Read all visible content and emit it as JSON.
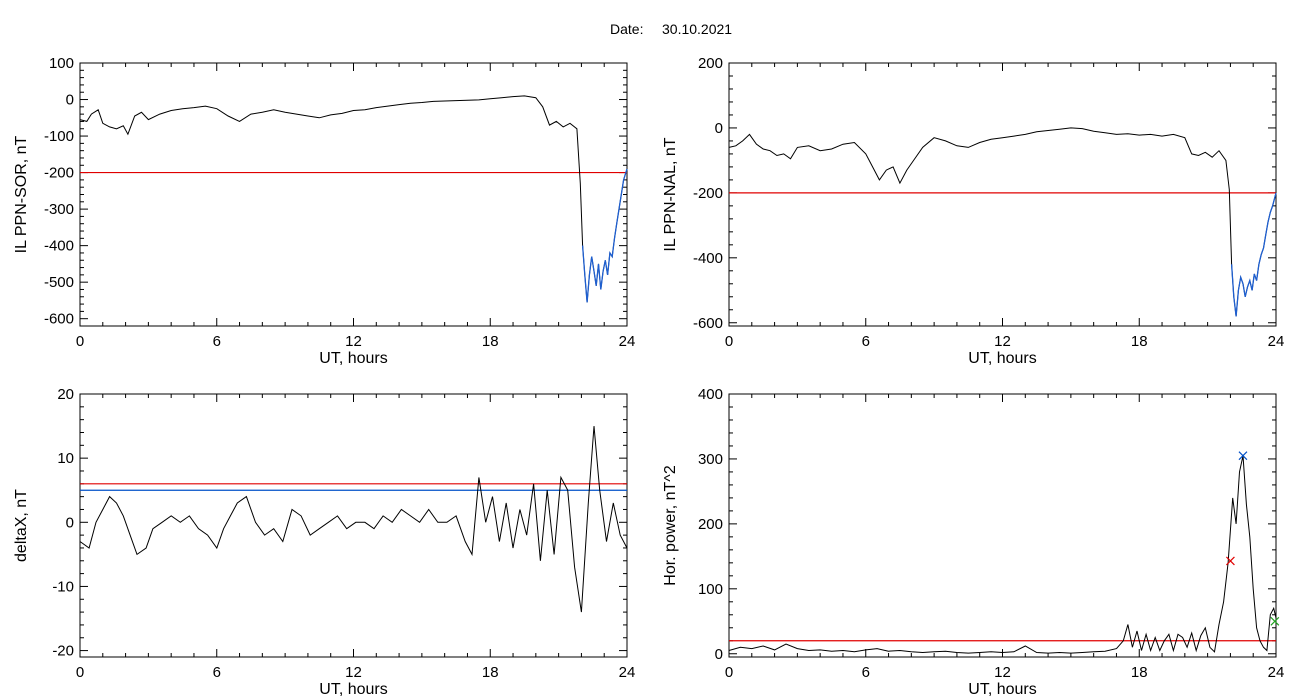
{
  "header": {
    "date_label": "Date:",
    "date_value": "30.10.2021"
  },
  "colors": {
    "series": "#000000",
    "threshold_red": "#e00000",
    "threshold_blue": "#0050c8",
    "highlight_blue": "#1e5fd0",
    "marker_red": "#e00000",
    "marker_blue": "#1e6ed0",
    "marker_green": "#20a020"
  },
  "chart_data": [
    {
      "type": "line",
      "id": "sor",
      "xlabel": "UT, hours",
      "ylabel": "IL PPN-SOR, nT",
      "xlim": [
        0,
        24
      ],
      "ylim": [
        -620,
        100
      ],
      "xticks": [
        0,
        6,
        12,
        18,
        24
      ],
      "xtick_labels": [
        "0",
        "6",
        "12",
        "18",
        "24"
      ],
      "yticks": [
        100,
        0,
        -100,
        -200,
        -300,
        -400,
        -500,
        -600
      ],
      "ytick_labels": [
        "100",
        "0",
        "-100",
        "-200",
        "-300",
        "-400",
        "-500",
        "-600"
      ],
      "threshold_lines": [
        {
          "y": -200,
          "color": "red"
        }
      ],
      "highlight": {
        "from_x": 22.0,
        "color": "blue"
      },
      "series": [
        {
          "x": [
            0,
            0.3,
            0.5,
            0.8,
            1.0,
            1.3,
            1.6,
            1.9,
            2.1,
            2.4,
            2.7,
            3.0,
            3.5,
            4.0,
            4.5,
            5.0,
            5.5,
            6.0,
            6.5,
            7.0,
            7.5,
            8.0,
            8.5,
            9.0,
            9.5,
            10.0,
            10.5,
            11.0,
            11.5,
            12.0,
            12.5,
            13.0,
            13.5,
            14.0,
            14.5,
            15.0,
            15.5,
            16.0,
            16.5,
            17.0,
            17.5,
            18.0,
            18.5,
            19.0,
            19.5,
            20.0,
            20.3,
            20.6,
            20.9,
            21.2,
            21.5,
            21.8,
            21.95,
            22.05,
            22.15,
            22.25,
            22.35,
            22.45,
            22.55,
            22.65,
            22.75,
            22.85,
            22.95,
            23.05,
            23.15,
            23.25,
            23.35,
            23.45,
            23.55,
            23.65,
            23.75,
            23.85,
            24.0
          ],
          "y": [
            -55,
            -60,
            -40,
            -28,
            -65,
            -75,
            -80,
            -72,
            -95,
            -45,
            -35,
            -55,
            -40,
            -30,
            -25,
            -22,
            -18,
            -25,
            -45,
            -60,
            -40,
            -35,
            -28,
            -35,
            -40,
            -45,
            -50,
            -42,
            -38,
            -30,
            -28,
            -22,
            -18,
            -14,
            -10,
            -8,
            -5,
            -4,
            -3,
            -2,
            -1,
            2,
            5,
            8,
            10,
            5,
            -20,
            -70,
            -60,
            -75,
            -65,
            -80,
            -230,
            -400,
            -480,
            -555,
            -480,
            -430,
            -470,
            -510,
            -450,
            -520,
            -470,
            -440,
            -480,
            -420,
            -430,
            -380,
            -340,
            -300,
            -260,
            -220,
            -190
          ]
        }
      ]
    },
    {
      "type": "line",
      "id": "nal",
      "xlabel": "UT, hours",
      "ylabel": "IL PPN-NAL, nT",
      "xlim": [
        0,
        24
      ],
      "ylim": [
        -610,
        200
      ],
      "xticks": [
        0,
        6,
        12,
        18,
        24
      ],
      "xtick_labels": [
        "0",
        "6",
        "12",
        "18",
        "24"
      ],
      "yticks": [
        200,
        0,
        -200,
        -400,
        -600
      ],
      "ytick_labels": [
        "200",
        "0",
        "-200",
        "-400",
        "-600"
      ],
      "threshold_lines": [
        {
          "y": -200,
          "color": "red"
        }
      ],
      "highlight": {
        "from_x": 22.0,
        "color": "blue"
      },
      "series": [
        {
          "x": [
            0,
            0.3,
            0.6,
            0.9,
            1.2,
            1.5,
            1.8,
            2.1,
            2.4,
            2.7,
            3.0,
            3.5,
            4.0,
            4.5,
            5.0,
            5.5,
            6.0,
            6.3,
            6.6,
            6.9,
            7.2,
            7.5,
            7.8,
            8.1,
            8.5,
            9.0,
            9.5,
            10.0,
            10.5,
            11.0,
            11.5,
            12.0,
            12.5,
            13.0,
            13.5,
            14.0,
            14.5,
            15.0,
            15.5,
            16.0,
            16.5,
            17.0,
            17.5,
            18.0,
            18.5,
            19.0,
            19.5,
            20.0,
            20.3,
            20.6,
            20.9,
            21.2,
            21.5,
            21.8,
            21.95,
            22.05,
            22.15,
            22.25,
            22.35,
            22.45,
            22.55,
            22.65,
            22.75,
            22.85,
            22.95,
            23.05,
            23.15,
            23.25,
            23.35,
            23.45,
            23.55,
            23.65,
            23.75,
            23.85,
            24.0
          ],
          "y": [
            -60,
            -55,
            -40,
            -20,
            -50,
            -65,
            -70,
            -85,
            -80,
            -95,
            -60,
            -55,
            -70,
            -65,
            -50,
            -45,
            -80,
            -120,
            -160,
            -130,
            -120,
            -170,
            -130,
            -100,
            -60,
            -30,
            -40,
            -55,
            -60,
            -45,
            -35,
            -30,
            -25,
            -20,
            -12,
            -8,
            -4,
            0,
            -2,
            -10,
            -15,
            -20,
            -18,
            -22,
            -20,
            -25,
            -20,
            -30,
            -80,
            -85,
            -75,
            -90,
            -70,
            -100,
            -190,
            -420,
            -520,
            -580,
            -500,
            -460,
            -480,
            -520,
            -490,
            -470,
            -500,
            -450,
            -470,
            -420,
            -390,
            -370,
            -330,
            -290,
            -260,
            -240,
            -200
          ]
        }
      ]
    },
    {
      "type": "line",
      "id": "deltax",
      "xlabel": "UT, hours",
      "ylabel": "deltaX, nT",
      "xlim": [
        0,
        24
      ],
      "ylim": [
        -21,
        20
      ],
      "xticks": [
        0,
        6,
        12,
        18,
        24
      ],
      "xtick_labels": [
        "0",
        "6",
        "12",
        "18",
        "24"
      ],
      "yticks": [
        20,
        10,
        0,
        -10,
        -20
      ],
      "ytick_labels": [
        "20",
        "10",
        "0",
        "-10",
        "-20"
      ],
      "threshold_lines": [
        {
          "y": 6,
          "color": "red"
        },
        {
          "y": 5,
          "color": "blue"
        }
      ],
      "series": [
        {
          "x": [
            0,
            0.4,
            0.7,
            1.0,
            1.3,
            1.6,
            1.9,
            2.2,
            2.5,
            2.9,
            3.2,
            3.6,
            4.0,
            4.4,
            4.8,
            5.2,
            5.6,
            6.0,
            6.3,
            6.6,
            6.9,
            7.3,
            7.7,
            8.1,
            8.5,
            8.9,
            9.3,
            9.7,
            10.1,
            10.5,
            10.9,
            11.3,
            11.7,
            12.1,
            12.5,
            12.9,
            13.3,
            13.7,
            14.1,
            14.5,
            14.9,
            15.3,
            15.7,
            16.1,
            16.5,
            16.9,
            17.2,
            17.5,
            17.8,
            18.1,
            18.4,
            18.7,
            19.0,
            19.3,
            19.6,
            19.9,
            20.2,
            20.5,
            20.8,
            21.1,
            21.4,
            21.7,
            22.0,
            22.3,
            22.55,
            22.8,
            23.1,
            23.4,
            23.7,
            24.0
          ],
          "y": [
            -3,
            -4,
            0,
            2,
            4,
            3,
            1,
            -2,
            -5,
            -4,
            -1,
            0,
            1,
            0,
            1,
            -1,
            -2,
            -4,
            -1,
            1,
            3,
            4,
            0,
            -2,
            -1,
            -3,
            2,
            1,
            -2,
            -1,
            0,
            1,
            -1,
            0,
            0,
            -1,
            1,
            0,
            2,
            1,
            0,
            2,
            0,
            0,
            1,
            -3,
            -5,
            7,
            0,
            4,
            -3,
            3,
            -4,
            2,
            -2,
            6,
            -6,
            5,
            -5,
            7,
            5,
            -7,
            -14,
            3,
            15,
            5,
            -3,
            3,
            -2,
            -4
          ]
        }
      ]
    },
    {
      "type": "line",
      "id": "power",
      "xlabel": "UT, hours",
      "ylabel": "Hor. power, nT^2",
      "xlim": [
        0,
        24
      ],
      "ylim": [
        -5,
        400
      ],
      "xticks": [
        0,
        6,
        12,
        18,
        24
      ],
      "xtick_labels": [
        "0",
        "6",
        "12",
        "18",
        "24"
      ],
      "yticks": [
        400,
        300,
        200,
        100,
        0
      ],
      "ytick_labels": [
        "400",
        "300",
        "200",
        "100",
        "0"
      ],
      "threshold_lines": [
        {
          "y": 20,
          "color": "red"
        }
      ],
      "markers": [
        {
          "x": 22.0,
          "y": 143,
          "color": "red",
          "symbol": "x"
        },
        {
          "x": 22.55,
          "y": 305,
          "color": "blue",
          "symbol": "x"
        },
        {
          "x": 23.95,
          "y": 50,
          "color": "green",
          "symbol": "x"
        }
      ],
      "series": [
        {
          "x": [
            0,
            0.5,
            1.0,
            1.5,
            2.0,
            2.5,
            3.0,
            3.5,
            4.0,
            4.5,
            5.0,
            5.5,
            6.0,
            6.5,
            7.0,
            7.5,
            8.0,
            8.5,
            9.0,
            9.5,
            10.0,
            10.5,
            11.0,
            11.5,
            12.0,
            12.5,
            13.0,
            13.5,
            14.0,
            14.5,
            15.0,
            15.5,
            16.0,
            16.5,
            17.0,
            17.3,
            17.5,
            17.7,
            17.9,
            18.1,
            18.3,
            18.5,
            18.7,
            18.9,
            19.1,
            19.3,
            19.5,
            19.7,
            19.9,
            20.1,
            20.3,
            20.5,
            20.7,
            20.9,
            21.1,
            21.3,
            21.5,
            21.7,
            21.9,
            22.1,
            22.25,
            22.4,
            22.55,
            22.7,
            22.85,
            23.0,
            23.15,
            23.3,
            23.45,
            23.6,
            23.75,
            23.9,
            24.0
          ],
          "y": [
            5,
            10,
            8,
            12,
            6,
            15,
            8,
            5,
            6,
            4,
            5,
            3,
            6,
            8,
            4,
            5,
            3,
            2,
            3,
            4,
            2,
            1,
            2,
            3,
            2,
            3,
            12,
            2,
            1,
            2,
            1,
            2,
            3,
            4,
            8,
            20,
            45,
            10,
            35,
            5,
            30,
            5,
            25,
            5,
            20,
            30,
            5,
            30,
            25,
            10,
            32,
            5,
            28,
            40,
            10,
            3,
            45,
            80,
            140,
            240,
            200,
            280,
            305,
            230,
            180,
            100,
            40,
            20,
            10,
            5,
            60,
            70,
            55
          ]
        }
      ]
    }
  ]
}
